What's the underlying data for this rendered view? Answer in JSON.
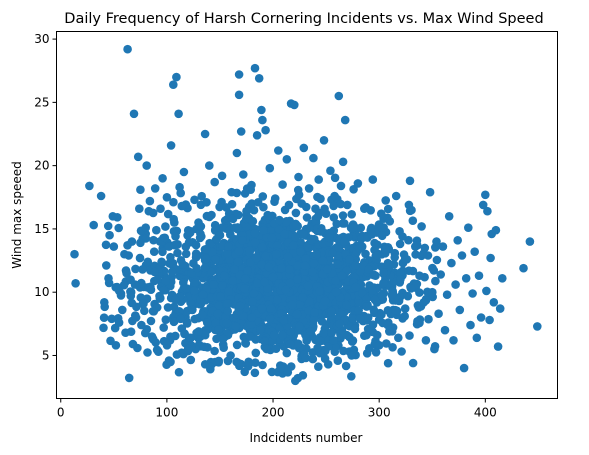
{
  "chart_data": {
    "type": "scatter",
    "title": "Daily Frequency of Harsh Cornering Incidents vs. Max Wind Speed",
    "xlabel": "Indcidents number",
    "ylabel": "Wind max speeed",
    "xlim": [
      -4,
      468
    ],
    "ylim": [
      1.6,
      30.6
    ],
    "x_ticks": [
      0,
      100,
      200,
      300,
      400
    ],
    "y_ticks": [
      5,
      10,
      15,
      20,
      25,
      30
    ],
    "grid": false,
    "marker_color": "#1f77b4",
    "n_points_approx": 2000,
    "points": [
      [
        13,
        13.0
      ],
      [
        14,
        10.7
      ],
      [
        27,
        18.4
      ],
      [
        31,
        15.3
      ],
      [
        38,
        17.6
      ],
      [
        41,
        9.2
      ],
      [
        45,
        11.1
      ],
      [
        46,
        14.5
      ],
      [
        48,
        7.9
      ],
      [
        49,
        16.0
      ],
      [
        50,
        13.6
      ],
      [
        52,
        5.8
      ],
      [
        53,
        10.4
      ],
      [
        55,
        7.6
      ],
      [
        58,
        8.6
      ],
      [
        60,
        13.0
      ],
      [
        61,
        6.8
      ],
      [
        62,
        11.5
      ],
      [
        63,
        29.2
      ],
      [
        64,
        12.9
      ],
      [
        66,
        9.7
      ],
      [
        67,
        14.0
      ],
      [
        68,
        5.9
      ],
      [
        69,
        24.1
      ],
      [
        70,
        10.6
      ],
      [
        71,
        8.0
      ],
      [
        73,
        20.7
      ],
      [
        74,
        16.6
      ],
      [
        75,
        13.9
      ],
      [
        75,
        18.1
      ],
      [
        76,
        7.4
      ],
      [
        77,
        11.8
      ],
      [
        78,
        9.1
      ],
      [
        80,
        15.1
      ],
      [
        81,
        20.0
      ],
      [
        82,
        12.4
      ],
      [
        83,
        16.4
      ],
      [
        84,
        17.2
      ],
      [
        85,
        10.2
      ],
      [
        86,
        6.5
      ],
      [
        87,
        8.5
      ],
      [
        88,
        13.2
      ],
      [
        89,
        18.2
      ],
      [
        90,
        14.9
      ],
      [
        91,
        11.0
      ],
      [
        92,
        5.3
      ],
      [
        93,
        9.7
      ],
      [
        94,
        16.6
      ],
      [
        95,
        12.4
      ],
      [
        96,
        19.0
      ],
      [
        97,
        7.2
      ],
      [
        98,
        14.3
      ],
      [
        99,
        10.9
      ],
      [
        100,
        17.5
      ],
      [
        101,
        8.8
      ],
      [
        102,
        13.6
      ],
      [
        103,
        6.2
      ],
      [
        104,
        21.6
      ],
      [
        105,
        11.6
      ],
      [
        106,
        26.4
      ],
      [
        107,
        15.5
      ],
      [
        108,
        9.4
      ],
      [
        109,
        27.0
      ],
      [
        110,
        13.1
      ],
      [
        111,
        24.1
      ],
      [
        112,
        18.3
      ],
      [
        113,
        7.9
      ],
      [
        114,
        16.8
      ],
      [
        115,
        12.2
      ],
      [
        116,
        19.5
      ],
      [
        118,
        10.3
      ],
      [
        120,
        5.5
      ],
      [
        122,
        14.7
      ],
      [
        124,
        8.6
      ],
      [
        126,
        17.3
      ],
      [
        128,
        11.9
      ],
      [
        130,
        6.9
      ],
      [
        132,
        15.2
      ],
      [
        134,
        9.8
      ],
      [
        136,
        22.5
      ],
      [
        137,
        13.4
      ],
      [
        138,
        7.6
      ],
      [
        140,
        20.0
      ],
      [
        141,
        4.1
      ],
      [
        142,
        16.1
      ],
      [
        144,
        10.6
      ],
      [
        145,
        18.7
      ],
      [
        146,
        12.6
      ],
      [
        148,
        8.3
      ],
      [
        150,
        14.5
      ],
      [
        152,
        19.2
      ],
      [
        153,
        6.3
      ],
      [
        154,
        11.3
      ],
      [
        156,
        16.7
      ],
      [
        157,
        9.1
      ],
      [
        158,
        13.6
      ],
      [
        160,
        5.0
      ],
      [
        161,
        17.9
      ],
      [
        162,
        10.9
      ],
      [
        164,
        15.1
      ],
      [
        165,
        7.3
      ],
      [
        166,
        21.0
      ],
      [
        167,
        12.4
      ],
      [
        168,
        27.2
      ],
      [
        168,
        25.6
      ],
      [
        169,
        8.9
      ],
      [
        170,
        22.7
      ],
      [
        171,
        14.1
      ],
      [
        172,
        19.3
      ],
      [
        173,
        10.3
      ],
      [
        174,
        6.0
      ],
      [
        175,
        16.4
      ],
      [
        176,
        11.7
      ],
      [
        177,
        4.5
      ],
      [
        178,
        13.3
      ],
      [
        179,
        18.1
      ],
      [
        180,
        8.0
      ],
      [
        181,
        15.6
      ],
      [
        182,
        9.9
      ],
      [
        183,
        27.7
      ],
      [
        184,
        12.7
      ],
      [
        185,
        22.4
      ],
      [
        186,
        17.1
      ],
      [
        187,
        26.9
      ],
      [
        188,
        7.0
      ],
      [
        189,
        24.4
      ],
      [
        190,
        23.6
      ],
      [
        191,
        14.9
      ],
      [
        192,
        10.8
      ],
      [
        193,
        22.8
      ],
      [
        194,
        5.5
      ],
      [
        195,
        16.1
      ],
      [
        196,
        12.0
      ],
      [
        197,
        19.8
      ],
      [
        198,
        8.7
      ],
      [
        199,
        14.3
      ],
      [
        200,
        11.2
      ],
      [
        201,
        6.6
      ],
      [
        202,
        17.4
      ],
      [
        203,
        13.0
      ],
      [
        204,
        9.4
      ],
      [
        205,
        21.2
      ],
      [
        206,
        15.7
      ],
      [
        207,
        4.0
      ],
      [
        208,
        11.9
      ],
      [
        209,
        18.5
      ],
      [
        210,
        7.8
      ],
      [
        211,
        14.6
      ],
      [
        212,
        10.2
      ],
      [
        213,
        20.5
      ],
      [
        214,
        12.8
      ],
      [
        215,
        16.9
      ],
      [
        216,
        5.9
      ],
      [
        217,
        24.9
      ],
      [
        218,
        9.0
      ],
      [
        219,
        13.7
      ],
      [
        220,
        24.8
      ],
      [
        221,
        3.0
      ],
      [
        222,
        15.3
      ],
      [
        223,
        11.0
      ],
      [
        224,
        19.1
      ],
      [
        225,
        7.3
      ],
      [
        226,
        13.2
      ],
      [
        227,
        17.0
      ],
      [
        228,
        9.6
      ],
      [
        229,
        21.4
      ],
      [
        230,
        12.1
      ],
      [
        231,
        4.8
      ],
      [
        232,
        15.9
      ],
      [
        233,
        10.5
      ],
      [
        234,
        18.2
      ],
      [
        235,
        6.9
      ],
      [
        236,
        14.1
      ],
      [
        237,
        11.6
      ],
      [
        238,
        20.6
      ],
      [
        239,
        8.4
      ],
      [
        240,
        16.6
      ],
      [
        241,
        13.0
      ],
      [
        242,
        5.6
      ],
      [
        243,
        18.9
      ],
      [
        244,
        10.1
      ],
      [
        245,
        14.8
      ],
      [
        246,
        7.7
      ],
      [
        247,
        12.5
      ],
      [
        248,
        22.0
      ],
      [
        249,
        9.3
      ],
      [
        250,
        16.2
      ],
      [
        251,
        11.8
      ],
      [
        252,
        4.3
      ],
      [
        253,
        14.3
      ],
      [
        254,
        19.6
      ],
      [
        255,
        8.5
      ],
      [
        256,
        13.1
      ],
      [
        257,
        6.2
      ],
      [
        258,
        17.6
      ],
      [
        259,
        10.9
      ],
      [
        260,
        15.4
      ],
      [
        261,
        12.2
      ],
      [
        262,
        25.5
      ],
      [
        263,
        7.5
      ],
      [
        264,
        18.4
      ],
      [
        265,
        11.3
      ],
      [
        266,
        20.3
      ],
      [
        267,
        14.0
      ],
      [
        268,
        23.6
      ],
      [
        269,
        9.0
      ],
      [
        270,
        16.9
      ],
      [
        272,
        12.6
      ],
      [
        274,
        5.0
      ],
      [
        276,
        15.1
      ],
      [
        278,
        10.4
      ],
      [
        280,
        18.6
      ],
      [
        282,
        7.9
      ],
      [
        284,
        13.6
      ],
      [
        286,
        16.6
      ],
      [
        288,
        6.6
      ],
      [
        290,
        11.8
      ],
      [
        292,
        14.9
      ],
      [
        294,
        18.9
      ],
      [
        296,
        9.4
      ],
      [
        298,
        12.9
      ],
      [
        300,
        5.8
      ],
      [
        302,
        16.2
      ],
      [
        304,
        10.7
      ],
      [
        306,
        13.4
      ],
      [
        308,
        7.4
      ],
      [
        310,
        15.6
      ],
      [
        312,
        9.8
      ],
      [
        314,
        12.2
      ],
      [
        316,
        17.6
      ],
      [
        318,
        6.4
      ],
      [
        320,
        11.0
      ],
      [
        322,
        14.4
      ],
      [
        324,
        8.1
      ],
      [
        326,
        12.6
      ],
      [
        328,
        16.9
      ],
      [
        329,
        18.8
      ],
      [
        330,
        10.3
      ],
      [
        332,
        4.4
      ],
      [
        334,
        13.6
      ],
      [
        336,
        7.7
      ],
      [
        338,
        11.3
      ],
      [
        340,
        15.2
      ],
      [
        342,
        9.2
      ],
      [
        344,
        6.2
      ],
      [
        346,
        12.9
      ],
      [
        348,
        17.9
      ],
      [
        350,
        10.0
      ],
      [
        352,
        5.5
      ],
      [
        354,
        14.0
      ],
      [
        356,
        8.3
      ],
      [
        358,
        11.4
      ],
      [
        360,
        13.6
      ],
      [
        362,
        7.0
      ],
      [
        364,
        9.8
      ],
      [
        366,
        16.0
      ],
      [
        368,
        12.3
      ],
      [
        370,
        6.2
      ],
      [
        372,
        10.6
      ],
      [
        374,
        14.1
      ],
      [
        376,
        8.6
      ],
      [
        378,
        12.9
      ],
      [
        380,
        4.0
      ],
      [
        382,
        11.1
      ],
      [
        384,
        15.1
      ],
      [
        386,
        7.4
      ],
      [
        388,
        9.9
      ],
      [
        390,
        13.2
      ],
      [
        392,
        6.4
      ],
      [
        394,
        11.3
      ],
      [
        396,
        8.0
      ],
      [
        398,
        16.9
      ],
      [
        400,
        17.7
      ],
      [
        401,
        10.1
      ],
      [
        402,
        16.4
      ],
      [
        404,
        7.8
      ],
      [
        405,
        12.7
      ],
      [
        406,
        14.6
      ],
      [
        408,
        9.2
      ],
      [
        410,
        14.9
      ],
      [
        412,
        5.7
      ],
      [
        414,
        8.7
      ],
      [
        416,
        11.1
      ],
      [
        436,
        11.9
      ],
      [
        442,
        14.0
      ],
      [
        449,
        7.3
      ]
    ]
  }
}
